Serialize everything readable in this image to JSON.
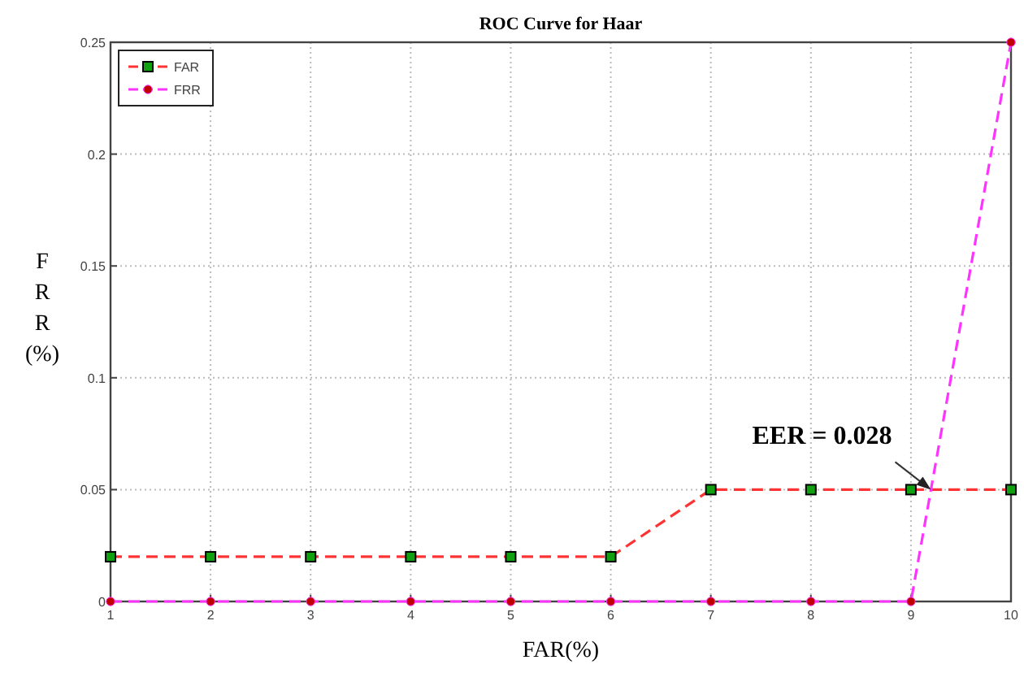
{
  "chart_data": {
    "type": "line",
    "title": "ROC Curve for Haar",
    "xlabel": "FAR(%)",
    "ylabel": "FRR (%)",
    "x": [
      1,
      2,
      3,
      4,
      5,
      6,
      7,
      8,
      9,
      10
    ],
    "series": [
      {
        "name": "FAR",
        "color": "#ff3333",
        "marker": "square",
        "values": [
          0.02,
          0.02,
          0.02,
          0.02,
          0.02,
          0.02,
          0.05,
          0.05,
          0.05,
          0.05
        ]
      },
      {
        "name": "FRR",
        "color": "#ff33ff",
        "marker": "circle",
        "values": [
          0,
          0,
          0,
          0,
          0,
          0,
          0,
          0,
          0,
          0.25
        ]
      }
    ],
    "xlim": [
      1,
      10
    ],
    "xticks": [
      1,
      2,
      3,
      4,
      5,
      6,
      7,
      8,
      9,
      10
    ],
    "ylim": [
      0,
      0.25
    ],
    "yticks": [
      0,
      0.05,
      0.1,
      0.15,
      0.2,
      0.25
    ],
    "grid": true,
    "legend": "top left",
    "line_style": "dashed",
    "annotations": [
      {
        "text": "EER = 0.028",
        "x": 9.2,
        "y": 0.05
      }
    ]
  }
}
